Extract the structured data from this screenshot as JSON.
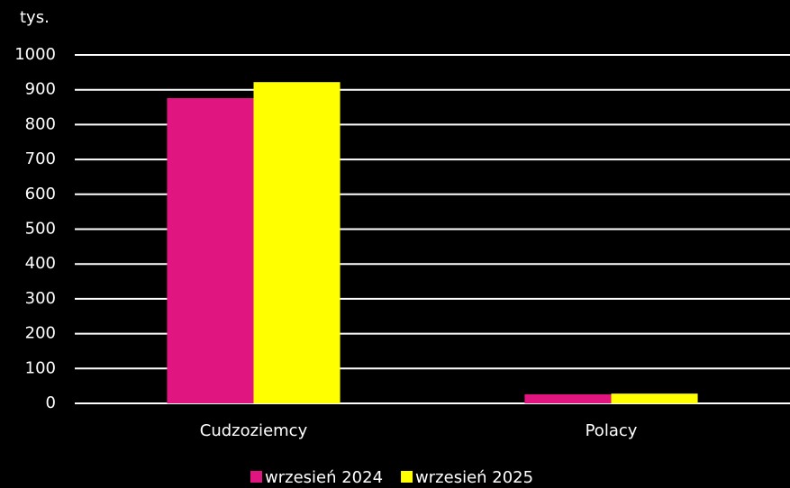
{
  "chart_data": {
    "type": "bar",
    "y_label": "tys.",
    "categories": [
      "Cudzoziemcy",
      "Polacy"
    ],
    "series": [
      {
        "name": "wrzesień 2024",
        "color": "#e0157f",
        "values": [
          876,
          26
        ]
      },
      {
        "name": "wrzesień 2025",
        "color": "#ffff00",
        "values": [
          922,
          28
        ]
      }
    ],
    "ylim": [
      0,
      1000
    ],
    "yticks": [
      0,
      100,
      200,
      300,
      400,
      500,
      600,
      700,
      800,
      900,
      1000
    ],
    "grid": true,
    "legend": "bottom"
  }
}
